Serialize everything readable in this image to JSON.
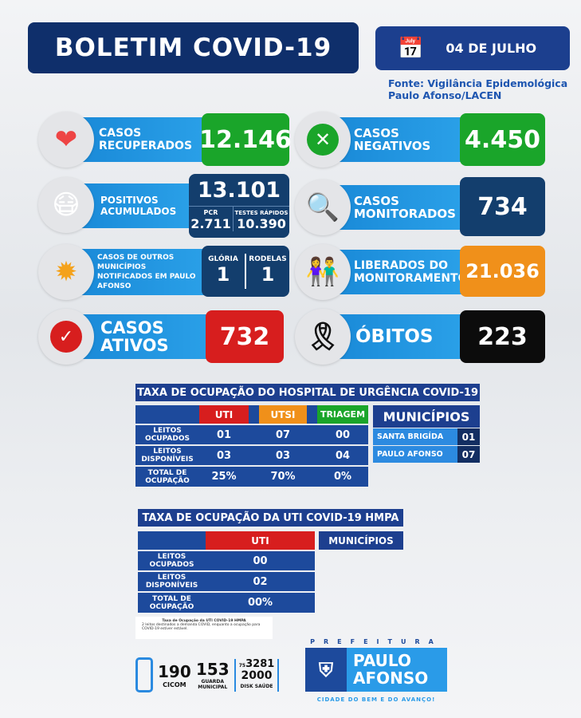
{
  "header": {
    "title": "BOLETIM COVID-19",
    "date": "04 DE JULHO",
    "source_line1": "Fonte: Vigilância Epidemológica",
    "source_line2": "Paulo Afonso/LACEN"
  },
  "cards": {
    "recuperados": {
      "label": "CASOS RECUPERADOS",
      "value": "12.146"
    },
    "negativos": {
      "label": "CASOS NEGATIVOS",
      "value": "4.450"
    },
    "positivos": {
      "label": "POSITIVOS ACUMULADOS",
      "value": "13.101",
      "pcr_label": "PCR",
      "pcr": "2.711",
      "rapidos_label": "TESTES RÁPIDOS",
      "rapidos": "10.390"
    },
    "monitorados": {
      "label": "CASOS MONITORADOS",
      "value": "734"
    },
    "outros": {
      "label": "CASOS DE OUTROS MUNICÍPIOS NOTIFICADOS EM PAULO AFONSO",
      "m1": "GLÓRIA",
      "v1": "1",
      "m2": "RODELAS",
      "v2": "1"
    },
    "liberados": {
      "label": "LIBERADOS DO MONITORAMENTO",
      "value": "21.036"
    },
    "ativos": {
      "label": "CASOS ATIVOS",
      "value": "732"
    },
    "obitos": {
      "label": "ÓBITOS",
      "value": "223"
    }
  },
  "hospital": {
    "title": "TAXA DE OCUPAÇÃO DO HOSPITAL DE URGÊNCIA COVID-19",
    "columns": [
      "UTI",
      "UTSI",
      "TRIAGEM"
    ],
    "rows": [
      {
        "label": "LEITOS OCUPADOS",
        "values": [
          "01",
          "07",
          "00"
        ]
      },
      {
        "label": "LEITOS DISPONÍVEIS",
        "values": [
          "03",
          "03",
          "04"
        ]
      },
      {
        "label": "TOTAL DE OCUPAÇÃO",
        "values": [
          "25%",
          "70%",
          "0%"
        ]
      }
    ],
    "municipios_title": "MUNICÍPIOS",
    "municipios": [
      {
        "name": "SANTA BRIGÍDA",
        "value": "01"
      },
      {
        "name": "PAULO AFONSO",
        "value": "07"
      }
    ]
  },
  "uti": {
    "title": "TAXA DE OCUPAÇÃO DA UTI COVID-19 HMPA",
    "column": "UTI",
    "municipios_title": "MUNICÍPIOS",
    "rows": [
      {
        "label": "LEITOS OCUPADOS",
        "value": "00"
      },
      {
        "label": "LEITOS DISPONÍVEIS",
        "value": "02"
      },
      {
        "label": "TOTAL DE OCUPAÇÃO",
        "value": "00%"
      }
    ]
  },
  "note": {
    "title": "Taxa de Ocupação da UTI COVID-19 HMPA",
    "text": "2 leitos destinados a demanda COVID, enquanto a ocupação para COVID-19 estiver estável."
  },
  "footer": {
    "n1": "190",
    "l1": "CICOM",
    "n2": "153",
    "l2": "GUARDA MUNICIPAL",
    "ddd": "75",
    "n3a": "3281",
    "n3b": "2000",
    "l3": "DISK SAÚDE",
    "pref": "PREFEITURA",
    "city1": "PAULO",
    "city2": "AFONSO",
    "slogan": "CIDADE DO BEM E DO AVANÇO!"
  },
  "colors": {
    "navy": "#0f2f6b",
    "blue": "#1d4a9c",
    "green": "#1aa52a",
    "orange": "#f0901a",
    "red": "#d71e1e"
  }
}
